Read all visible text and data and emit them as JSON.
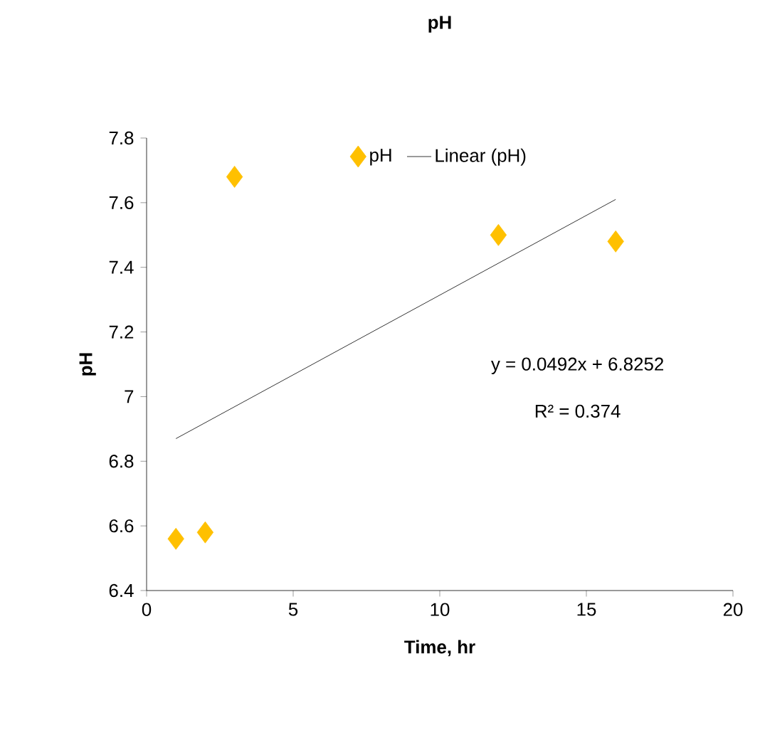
{
  "chart_data": {
    "type": "scatter",
    "title": "pH",
    "xlabel": "Time, hr",
    "ylabel": "pH",
    "xlim": [
      0,
      20
    ],
    "xticks": [
      0,
      5,
      10,
      15,
      20
    ],
    "ylim": [
      6.4,
      7.8
    ],
    "yticks": [
      6.4,
      6.6,
      6.8,
      7,
      7.2,
      7.4,
      7.6,
      7.8
    ],
    "legend": "top",
    "marker": "diamond",
    "x": [
      1,
      2,
      3,
      12,
      16
    ],
    "series": [
      {
        "name": "pH",
        "color": "#ffc000",
        "values": [
          6.56,
          6.58,
          7.68,
          7.5,
          7.48
        ]
      },
      {
        "name": "Linear (pH)",
        "type": "line",
        "color": "#000000",
        "marker": "none",
        "x": [
          1,
          16
        ],
        "values": [
          6.87,
          7.61
        ]
      }
    ],
    "annotations": [
      "y = 0.0492x + 6.8252",
      "R² = 0.374"
    ]
  }
}
